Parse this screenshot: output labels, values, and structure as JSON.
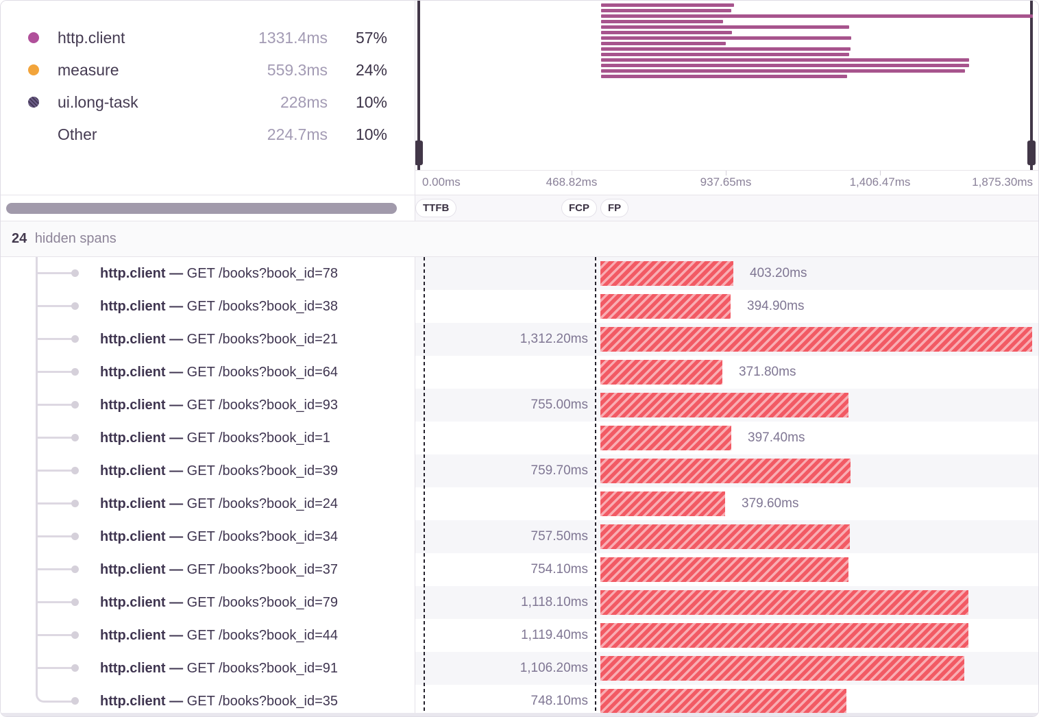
{
  "legend": {
    "items": [
      {
        "label": "http.client",
        "duration": "1331.4ms",
        "percent": "57%",
        "color": "#b0509a",
        "dot": "solid"
      },
      {
        "label": "measure",
        "duration": "559.3ms",
        "percent": "24%",
        "color": "#f2a43b",
        "dot": "solid"
      },
      {
        "label": "ui.long-task",
        "duration": "228ms",
        "percent": "10%",
        "color": "#574a71",
        "dot": "hatched"
      },
      {
        "label": "Other",
        "duration": "224.7ms",
        "percent": "10%",
        "color": "",
        "dot": "none"
      }
    ]
  },
  "minimap": {
    "bar_color": "#a7548d"
  },
  "axis": {
    "tick_labels": [
      "0.00ms",
      "468.82ms",
      "937.65ms",
      "1,406.47ms",
      "1,875.30ms"
    ],
    "total_ms": 1875.3
  },
  "vitals": [
    {
      "label": "TTFB"
    },
    {
      "label": "FCP"
    },
    {
      "label": "FP"
    }
  ],
  "hidden": {
    "count": "24",
    "label": "hidden spans"
  },
  "spans": {
    "op": "http.client",
    "separator": "—",
    "items": [
      {
        "description": "GET /books?book_id=78",
        "duration_ms": 403.2,
        "duration_label": "403.20ms"
      },
      {
        "description": "GET /books?book_id=38",
        "duration_ms": 394.9,
        "duration_label": "394.90ms"
      },
      {
        "description": "GET /books?book_id=21",
        "duration_ms": 1312.2,
        "duration_label": "1,312.20ms"
      },
      {
        "description": "GET /books?book_id=64",
        "duration_ms": 371.8,
        "duration_label": "371.80ms"
      },
      {
        "description": "GET /books?book_id=93",
        "duration_ms": 755.0,
        "duration_label": "755.00ms"
      },
      {
        "description": "GET /books?book_id=1",
        "duration_ms": 397.4,
        "duration_label": "397.40ms"
      },
      {
        "description": "GET /books?book_id=39",
        "duration_ms": 759.7,
        "duration_label": "759.70ms"
      },
      {
        "description": "GET /books?book_id=24",
        "duration_ms": 379.6,
        "duration_label": "379.60ms"
      },
      {
        "description": "GET /books?book_id=34",
        "duration_ms": 757.5,
        "duration_label": "757.50ms"
      },
      {
        "description": "GET /books?book_id=37",
        "duration_ms": 754.1,
        "duration_label": "754.10ms"
      },
      {
        "description": "GET /books?book_id=79",
        "duration_ms": 1118.1,
        "duration_label": "1,118.10ms"
      },
      {
        "description": "GET /books?book_id=44",
        "duration_ms": 1119.4,
        "duration_label": "1,119.40ms"
      },
      {
        "description": "GET /books?book_id=91",
        "duration_ms": 1106.2,
        "duration_label": "1,106.20ms"
      },
      {
        "description": "GET /books?book_id=35",
        "duration_ms": 748.1,
        "duration_label": "748.10ms"
      }
    ]
  },
  "colors": {
    "span_bar_stripe": "#f25a64",
    "span_bar_base": "#f9adb3",
    "minimap_bar": "#a7548d",
    "handle": "#423748"
  }
}
